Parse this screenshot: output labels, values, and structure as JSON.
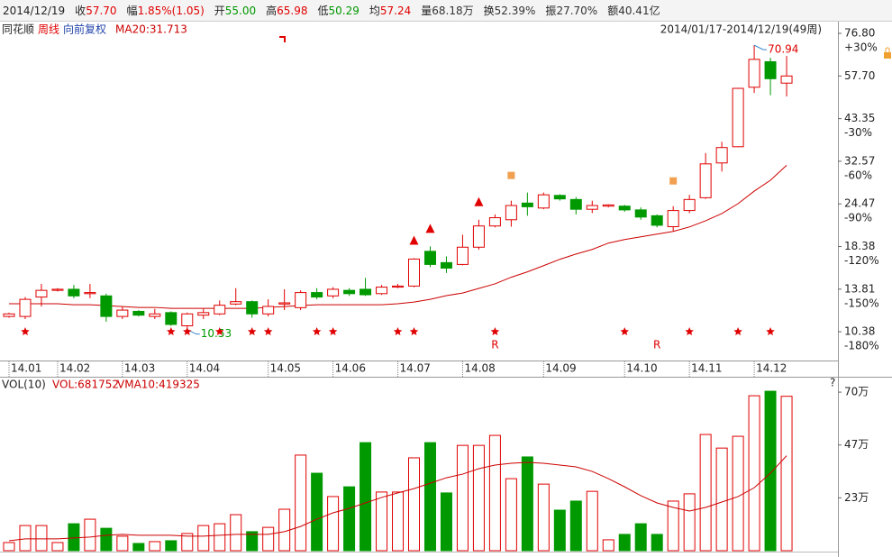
{
  "header": {
    "date": "2014/12/19",
    "items": [
      {
        "label": "收",
        "value": "57.70",
        "color": "#e00000"
      },
      {
        "label": "幅",
        "value": "1.85%(1.05)",
        "color": "#e00000"
      },
      {
        "label": "开",
        "value": "55.00",
        "color": "#009900"
      },
      {
        "label": "高",
        "value": "65.98",
        "color": "#e00000"
      },
      {
        "label": "低",
        "value": "50.29",
        "color": "#009900"
      },
      {
        "label": "均",
        "value": "57.24",
        "color": "#e00000"
      },
      {
        "label": "量",
        "value": "68.18万",
        "color": "#333333"
      },
      {
        "label": "换",
        "value": "52.39%",
        "color": "#333333"
      },
      {
        "label": "振",
        "value": "27.70%",
        "color": "#333333"
      },
      {
        "label": "额",
        "value": "40.41亿",
        "color": "#333333"
      }
    ]
  },
  "chart_data": [
    {
      "type": "candlestick",
      "source": "同花顺",
      "period": "周线",
      "adjust": "向前复权",
      "ma_label": "MA20:31.713",
      "range_label": "2014/01/17-2014/12/19(49周)",
      "log_scale": true,
      "up_color": "#e00000",
      "down_color": "#009900",
      "ma_color": "#cc0000",
      "ylim": [
        8.82,
        81.09
      ],
      "yticks": [
        {
          "value": 76.8,
          "label": "76.80"
        },
        {
          "value": 57.7,
          "label": "57.70"
        },
        43.35,
        32.57,
        24.47,
        18.38,
        13.81,
        10.38
      ],
      "ratio_labels": [
        "+30%",
        "-30%",
        "-60%",
        "-90%",
        "-120%",
        "-150%",
        "-180%"
      ],
      "categories": [
        "14.01",
        null,
        null,
        "14.02",
        null,
        null,
        null,
        "14.03",
        null,
        null,
        null,
        "14.04",
        null,
        null,
        null,
        null,
        "14.05",
        null,
        null,
        null,
        "14.06",
        null,
        null,
        null,
        "14.07",
        null,
        null,
        null,
        "14.08",
        null,
        null,
        null,
        null,
        "14.09",
        null,
        null,
        null,
        null,
        "14.10",
        null,
        null,
        null,
        "14.11",
        null,
        null,
        null,
        "14.12",
        null,
        null
      ],
      "open": [
        11.5,
        11.5,
        13.1,
        13.7,
        13.8,
        13.4,
        13.2,
        11.5,
        11.9,
        11.5,
        11.8,
        10.8,
        11.6,
        11.7,
        12.5,
        12.7,
        11.7,
        12.5,
        12.2,
        13.5,
        13.2,
        13.7,
        13.8,
        13.4,
        14.0,
        14.1,
        17.8,
        16.5,
        16.3,
        18.3,
        21.1,
        22.0,
        24.6,
        23.8,
        25.9,
        25.2,
        23.6,
        24.1,
        24.1,
        23.5,
        22.6,
        21.0,
        23.4,
        25.5,
        32.2,
        35.9,
        53.5,
        63.5,
        55.0
      ],
      "high": [
        11.8,
        13.1,
        14.3,
        13.9,
        14.2,
        14.3,
        13.4,
        12.3,
        12.0,
        12.1,
        11.9,
        11.8,
        12.1,
        12.8,
        13.9,
        12.8,
        12.9,
        13.8,
        13.7,
        13.9,
        14.0,
        13.9,
        14.9,
        14.2,
        14.3,
        17.0,
        18.4,
        17.2,
        19.9,
        22.0,
        22.8,
        25.0,
        26.4,
        26.4,
        26.1,
        25.6,
        25.0,
        24.4,
        24.3,
        23.9,
        22.8,
        24.1,
        26.0,
        34.4,
        37.1,
        53.3,
        70.94,
        65.2,
        65.98
      ],
      "low": [
        11.4,
        11.3,
        12.3,
        13.6,
        13.0,
        13.0,
        11.1,
        11.3,
        11.5,
        11.3,
        10.8,
        10.53,
        11.3,
        11.6,
        12.4,
        11.4,
        11.5,
        12.0,
        12.0,
        12.9,
        13.0,
        13.2,
        13.2,
        13.3,
        13.9,
        14.0,
        16.0,
        15.4,
        16.2,
        18.0,
        20.9,
        21.0,
        22.6,
        23.6,
        25.0,
        22.8,
        23.0,
        23.9,
        23.2,
        22.0,
        20.9,
        20.4,
        23.0,
        25.3,
        30.4,
        35.8,
        51.5,
        50.7,
        50.29
      ],
      "close": [
        11.7,
        12.9,
        13.7,
        13.8,
        13.2,
        13.5,
        11.5,
        12.0,
        11.6,
        11.7,
        10.9,
        11.7,
        11.8,
        12.4,
        12.7,
        11.7,
        12.3,
        12.6,
        13.5,
        13.1,
        13.8,
        13.4,
        13.3,
        14.0,
        14.1,
        16.9,
        16.3,
        15.9,
        18.3,
        21.1,
        22.3,
        24.2,
        24.0,
        26.0,
        25.3,
        23.6,
        24.2,
        24.3,
        23.5,
        22.4,
        21.2,
        23.4,
        25.2,
        32.0,
        35.7,
        53.1,
        64.5,
        56.65,
        57.7
      ],
      "ma": [
        12.52,
        12.52,
        12.52,
        12.52,
        12.44,
        12.44,
        12.37,
        12.29,
        12.22,
        12.22,
        12.14,
        12.14,
        12.14,
        12.14,
        12.14,
        12.14,
        12.22,
        12.29,
        12.37,
        12.44,
        12.44,
        12.44,
        12.44,
        12.44,
        12.52,
        12.67,
        12.9,
        13.22,
        13.46,
        13.88,
        14.31,
        14.96,
        15.51,
        16.17,
        16.87,
        17.48,
        18.03,
        18.81,
        19.27,
        19.62,
        19.98,
        20.34,
        20.96,
        21.85,
        22.93,
        24.5,
        26.65,
        28.67,
        31.71
      ],
      "star_weeks": [
        1,
        10,
        11,
        13,
        15,
        16,
        19,
        20,
        24,
        25,
        30,
        38,
        42,
        45,
        47
      ],
      "signal_labels": [
        null,
        null,
        null,
        null,
        null,
        null,
        null,
        null,
        null,
        null,
        null,
        null,
        null,
        null,
        null,
        null,
        null,
        null,
        null,
        null,
        null,
        null,
        null,
        null,
        null,
        null,
        null,
        null,
        null,
        null,
        "R",
        null,
        null,
        null,
        null,
        null,
        null,
        null,
        null,
        null,
        "R",
        null,
        null,
        null,
        null,
        null,
        null,
        null,
        null
      ],
      "up_triangles": [
        25,
        26,
        29
      ],
      "squares": [
        31,
        41
      ]
    },
    {
      "type": "volume",
      "title": "VOL(10)",
      "vol_label": "VOL:681752",
      "vma_label": "VMA10:419325",
      "help": "?",
      "ma_color": "#cc0000",
      "ylim": [
        0,
        760000
      ],
      "yticks": [
        {
          "value": 233333,
          "label": "23万"
        },
        {
          "value": 466667,
          "label": "47万"
        },
        {
          "value": 700000,
          "label": "70万"
        }
      ],
      "values": [
        36000,
        111000,
        111000,
        36000,
        119000,
        139000,
        99000,
        64000,
        32000,
        40000,
        44000,
        76000,
        111000,
        119000,
        159000,
        84000,
        103000,
        183000,
        422000,
        342000,
        239000,
        282000,
        477000,
        259000,
        259000,
        410000,
        477000,
        255000,
        465000,
        465000,
        509000,
        318000,
        414000,
        294000,
        179000,
        219000,
        262000,
        48000,
        72000,
        119000,
        72000,
        219000,
        251000,
        513000,
        453000,
        505000,
        684000,
        704000,
        681752
      ],
      "ma": [
        44000,
        52000,
        52000,
        52000,
        56000,
        60000,
        68000,
        72000,
        68000,
        68000,
        68000,
        64000,
        64000,
        68000,
        72000,
        72000,
        72000,
        84000,
        107000,
        139000,
        167000,
        187000,
        211000,
        235000,
        255000,
        274000,
        298000,
        322000,
        338000,
        362000,
        378000,
        386000,
        390000,
        386000,
        378000,
        370000,
        350000,
        318000,
        282000,
        243000,
        211000,
        191000,
        175000,
        191000,
        215000,
        239000,
        278000,
        342000,
        419325
      ]
    }
  ]
}
